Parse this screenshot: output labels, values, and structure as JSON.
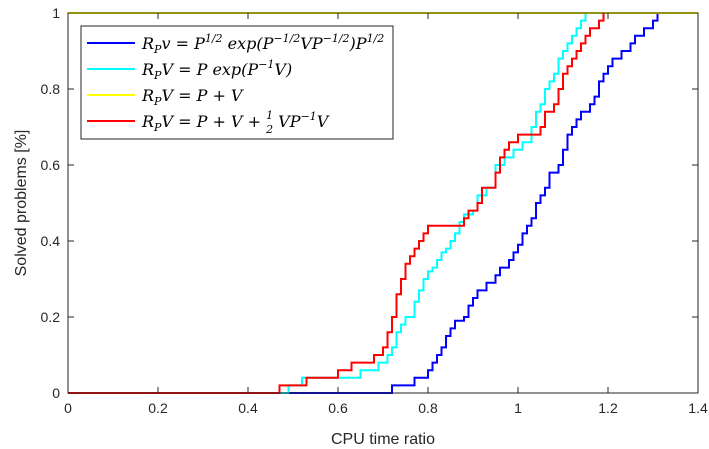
{
  "chart_data": {
    "type": "line",
    "title": "",
    "xlabel": "CPU time ratio",
    "ylabel": "Solved problems [%]",
    "xlim": [
      0,
      1.4
    ],
    "ylim": [
      0,
      1
    ],
    "xticks": [
      0,
      0.2,
      0.4,
      0.6,
      0.8,
      1,
      1.2,
      1.4
    ],
    "xtick_labels": [
      "0",
      "0.2",
      "0.4",
      "0.6",
      "0.8",
      "1",
      "1.2",
      "1.4"
    ],
    "yticks": [
      0,
      0.2,
      0.4,
      0.6,
      0.8,
      1
    ],
    "ytick_labels": [
      "0",
      "0.2",
      "0.4",
      "0.6",
      "0.8",
      "1"
    ],
    "grid": false,
    "legend_location": "top-left",
    "series": [
      {
        "name": "R_P v = P^{1/2} exp(P^{-1/2} V P^{-1/2}) P^{1/2}",
        "color": "#0000ff",
        "step": true,
        "points": [
          [
            0,
            0
          ],
          [
            0.72,
            0.02
          ],
          [
            0.77,
            0.04
          ],
          [
            0.8,
            0.06
          ],
          [
            0.81,
            0.08
          ],
          [
            0.82,
            0.1
          ],
          [
            0.83,
            0.12
          ],
          [
            0.84,
            0.15
          ],
          [
            0.85,
            0.17
          ],
          [
            0.86,
            0.19
          ],
          [
            0.88,
            0.2
          ],
          [
            0.89,
            0.23
          ],
          [
            0.9,
            0.25
          ],
          [
            0.91,
            0.27
          ],
          [
            0.93,
            0.29
          ],
          [
            0.95,
            0.31
          ],
          [
            0.96,
            0.33
          ],
          [
            0.98,
            0.35
          ],
          [
            0.99,
            0.37
          ],
          [
            1.0,
            0.39
          ],
          [
            1.01,
            0.42
          ],
          [
            1.02,
            0.44
          ],
          [
            1.03,
            0.46
          ],
          [
            1.04,
            0.5
          ],
          [
            1.05,
            0.52
          ],
          [
            1.06,
            0.54
          ],
          [
            1.07,
            0.58
          ],
          [
            1.09,
            0.6
          ],
          [
            1.1,
            0.64
          ],
          [
            1.11,
            0.68
          ],
          [
            1.12,
            0.7
          ],
          [
            1.13,
            0.72
          ],
          [
            1.14,
            0.74
          ],
          [
            1.16,
            0.76
          ],
          [
            1.17,
            0.78
          ],
          [
            1.18,
            0.82
          ],
          [
            1.19,
            0.84
          ],
          [
            1.2,
            0.86
          ],
          [
            1.21,
            0.88
          ],
          [
            1.23,
            0.9
          ],
          [
            1.25,
            0.92
          ],
          [
            1.26,
            0.94
          ],
          [
            1.28,
            0.96
          ],
          [
            1.3,
            0.98
          ],
          [
            1.31,
            1.0
          ]
        ]
      },
      {
        "name": "R_P V = P exp(P^{-1} V)",
        "color": "#00ffff",
        "step": true,
        "points": [
          [
            0,
            0
          ],
          [
            0.49,
            0.02
          ],
          [
            0.52,
            0.04
          ],
          [
            0.65,
            0.06
          ],
          [
            0.69,
            0.08
          ],
          [
            0.71,
            0.1
          ],
          [
            0.72,
            0.12
          ],
          [
            0.73,
            0.16
          ],
          [
            0.74,
            0.18
          ],
          [
            0.75,
            0.2
          ],
          [
            0.77,
            0.24
          ],
          [
            0.78,
            0.27
          ],
          [
            0.79,
            0.3
          ],
          [
            0.8,
            0.32
          ],
          [
            0.81,
            0.33
          ],
          [
            0.82,
            0.35
          ],
          [
            0.83,
            0.37
          ],
          [
            0.84,
            0.38
          ],
          [
            0.85,
            0.4
          ],
          [
            0.86,
            0.42
          ],
          [
            0.87,
            0.45
          ],
          [
            0.88,
            0.47
          ],
          [
            0.9,
            0.48
          ],
          [
            0.91,
            0.52
          ],
          [
            0.93,
            0.54
          ],
          [
            0.95,
            0.6
          ],
          [
            0.97,
            0.62
          ],
          [
            0.99,
            0.64
          ],
          [
            1.01,
            0.66
          ],
          [
            1.03,
            0.7
          ],
          [
            1.04,
            0.74
          ],
          [
            1.05,
            0.76
          ],
          [
            1.06,
            0.8
          ],
          [
            1.07,
            0.82
          ],
          [
            1.08,
            0.84
          ],
          [
            1.09,
            0.88
          ],
          [
            1.1,
            0.9
          ],
          [
            1.11,
            0.92
          ],
          [
            1.12,
            0.94
          ],
          [
            1.13,
            0.96
          ],
          [
            1.14,
            0.98
          ],
          [
            1.15,
            1.0
          ]
        ]
      },
      {
        "name": "R_P V = P + V",
        "color": "#ffff00",
        "step": true,
        "points": [
          [
            0,
            1
          ],
          [
            1.4,
            1
          ]
        ]
      },
      {
        "name": "R_P V = P + V + (1/2) V P^{-1} V",
        "color": "#ff0000",
        "step": true,
        "points": [
          [
            0,
            0
          ],
          [
            0.47,
            0.02
          ],
          [
            0.53,
            0.04
          ],
          [
            0.6,
            0.06
          ],
          [
            0.63,
            0.08
          ],
          [
            0.68,
            0.1
          ],
          [
            0.7,
            0.12
          ],
          [
            0.71,
            0.16
          ],
          [
            0.72,
            0.2
          ],
          [
            0.73,
            0.26
          ],
          [
            0.74,
            0.3
          ],
          [
            0.75,
            0.34
          ],
          [
            0.76,
            0.36
          ],
          [
            0.77,
            0.38
          ],
          [
            0.78,
            0.4
          ],
          [
            0.79,
            0.42
          ],
          [
            0.8,
            0.44
          ],
          [
            0.88,
            0.46
          ],
          [
            0.89,
            0.48
          ],
          [
            0.91,
            0.5
          ],
          [
            0.92,
            0.54
          ],
          [
            0.95,
            0.58
          ],
          [
            0.96,
            0.62
          ],
          [
            0.97,
            0.64
          ],
          [
            0.98,
            0.66
          ],
          [
            1.0,
            0.68
          ],
          [
            1.05,
            0.7
          ],
          [
            1.06,
            0.74
          ],
          [
            1.08,
            0.76
          ],
          [
            1.09,
            0.8
          ],
          [
            1.1,
            0.84
          ],
          [
            1.11,
            0.86
          ],
          [
            1.12,
            0.88
          ],
          [
            1.13,
            0.9
          ],
          [
            1.14,
            0.92
          ],
          [
            1.15,
            0.94
          ],
          [
            1.16,
            0.96
          ],
          [
            1.18,
            0.98
          ],
          [
            1.19,
            1.0
          ]
        ]
      }
    ]
  }
}
